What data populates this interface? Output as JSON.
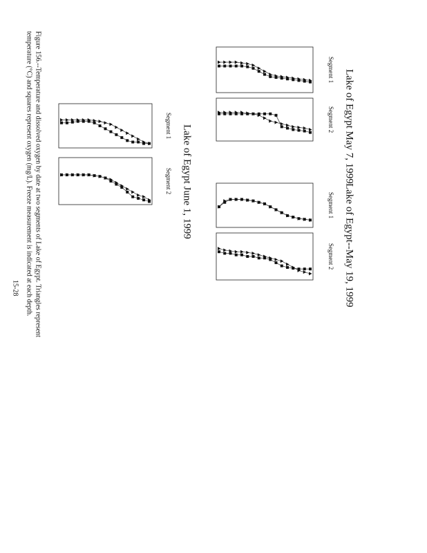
{
  "figures": [
    {
      "title": "Lake of Egypt   May 7, 1999",
      "panels": [
        {
          "label": "Segment 1",
          "xlim": [
            0,
            30
          ],
          "depths": [
            0,
            1,
            2,
            3,
            4,
            5,
            6,
            7,
            8,
            9,
            10,
            11,
            12,
            13,
            14,
            15,
            16
          ],
          "temperature": [
            22,
            21.5,
            21,
            20.5,
            20,
            19.5,
            19,
            18,
            16,
            14,
            12,
            11,
            10.5,
            10,
            10,
            10,
            10
          ],
          "oxygen": [
            23,
            22.5,
            22,
            21.5,
            21,
            20.5,
            20,
            19.5,
            18,
            16,
            14,
            13,
            12.5,
            12.5,
            12.5,
            12.5,
            12.5
          ]
        },
        {
          "label": "Segment 2",
          "xlim": [
            0,
            30
          ],
          "depths": [
            0,
            1,
            2,
            3,
            4,
            5,
            6,
            7,
            8,
            9,
            10,
            11,
            12,
            13,
            14,
            15,
            16
          ],
          "temperature": [
            22,
            21,
            20.5,
            20,
            19,
            18,
            17,
            16,
            14,
            12,
            11,
            10.5,
            10,
            10,
            10,
            10,
            10
          ],
          "oxygen": [
            24,
            23,
            22.5,
            22,
            21,
            20,
            12,
            11,
            11,
            11,
            11,
            11,
            11,
            11,
            11,
            11,
            11
          ]
        }
      ]
    },
    {
      "title": "Lake of Egypt--May 19, 1999",
      "panels": [
        {
          "label": "Segment 1",
          "xlim": [
            0,
            30
          ],
          "depths": [
            0,
            1,
            2,
            3,
            4,
            5,
            6,
            7,
            8,
            9,
            10,
            11,
            12,
            13,
            14,
            15,
            16
          ],
          "temperature": [
            25,
            24.5,
            24,
            23,
            22,
            20,
            18,
            16,
            14,
            13,
            12,
            11.5,
            11,
            11,
            11,
            12,
            16
          ],
          "oxygen": [
            25,
            24.5,
            24,
            23,
            22,
            20,
            18,
            16,
            14,
            13,
            12,
            11.5,
            11,
            11,
            11,
            13,
            16
          ]
        },
        {
          "label": "Segment 2",
          "xlim": [
            0,
            30
          ],
          "depths": [
            0,
            1,
            2,
            3,
            4,
            5,
            6,
            7,
            8,
            9,
            10,
            11,
            12,
            13,
            14,
            15,
            16
          ],
          "temperature": [
            26,
            25,
            24,
            22,
            20,
            18,
            17,
            16,
            15,
            14,
            13,
            12.5,
            12,
            12,
            11.5,
            11,
            10
          ],
          "oxygen": [
            23,
            23,
            23,
            22.5,
            22,
            21,
            19,
            17,
            16,
            16,
            15,
            15,
            14,
            14,
            13,
            13,
            12
          ]
        }
      ]
    },
    {
      "title": "Lake of Egypt   June 1, 1999",
      "panels": [
        {
          "label": "Segment 1",
          "xlim": [
            0,
            30
          ],
          "depths": [
            0,
            1,
            2,
            3,
            4,
            5,
            6,
            7,
            8,
            9,
            10,
            11,
            12,
            13,
            14,
            15,
            16
          ],
          "temperature": [
            27,
            26,
            24,
            22,
            20,
            18,
            16,
            14,
            13,
            12,
            11.5,
            11,
            11,
            11,
            11,
            11,
            11
          ],
          "oxygen": [
            27,
            27,
            26,
            26,
            25,
            23,
            21,
            19,
            17,
            15,
            13,
            12,
            12,
            12,
            12.5,
            13,
            13
          ]
        },
        {
          "label": "Segment 2",
          "xlim": [
            0,
            30
          ],
          "depths": [
            0,
            1,
            2,
            3,
            4,
            5,
            6,
            7,
            8,
            9,
            10,
            11,
            12,
            13,
            14,
            15,
            16
          ],
          "temperature": [
            27,
            25,
            24,
            22,
            20,
            18,
            16,
            14,
            13,
            12,
            11.5,
            11,
            11,
            11,
            11,
            11,
            11
          ],
          "oxygen": [
            28,
            27,
            26,
            25,
            22,
            19,
            17,
            15,
            13,
            12,
            11.5,
            11,
            11,
            11,
            11,
            11,
            11
          ]
        }
      ]
    }
  ],
  "caption": [
    "Figure 156.--Temperature and dissolved oxygen by date at two segments of Lake of Egypt. Triangles represent",
    "temperature (°C) and squares represent oxygen (mg/L). Freeze measurement is indicated at each depth."
  ],
  "page_number": "15-28"
}
